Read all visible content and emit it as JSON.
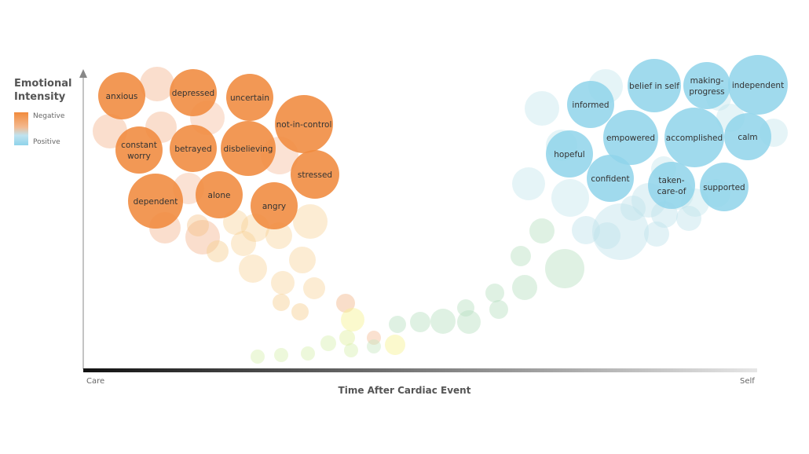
{
  "legend": {
    "title_line1": "Emotional",
    "title_line2": "Intensity",
    "negative_label": "Negative",
    "positive_label": "Positive",
    "gradient_colors": [
      "#f28b3c",
      "#8fd3ea"
    ]
  },
  "axes": {
    "y_title": "",
    "x_title": "Time After Cardiac Event",
    "x_start_label": "Care",
    "x_end_label": "Self"
  },
  "colors": {
    "negative": "#f08a3e",
    "positive": "#8fd3ea",
    "axis": "#888888"
  },
  "emotions": {
    "negative": [
      {
        "id": "anxious",
        "lines": [
          "anxious"
        ]
      },
      {
        "id": "depressed",
        "lines": [
          "depressed"
        ]
      },
      {
        "id": "uncertain",
        "lines": [
          "uncertain"
        ]
      },
      {
        "id": "not-in-control",
        "lines": [
          "not-in-control"
        ]
      },
      {
        "id": "constant-worry",
        "lines": [
          "constant",
          "worry"
        ]
      },
      {
        "id": "betrayed",
        "lines": [
          "betrayed"
        ]
      },
      {
        "id": "disbelieving",
        "lines": [
          "disbelieving"
        ]
      },
      {
        "id": "stressed",
        "lines": [
          "stressed"
        ]
      },
      {
        "id": "dependent",
        "lines": [
          "dependent"
        ]
      },
      {
        "id": "alone",
        "lines": [
          "alone"
        ]
      },
      {
        "id": "angry",
        "lines": [
          "angry"
        ]
      }
    ],
    "positive": [
      {
        "id": "informed",
        "lines": [
          "informed"
        ]
      },
      {
        "id": "belief-in-self",
        "lines": [
          "belief in self"
        ]
      },
      {
        "id": "making-progress",
        "lines": [
          "making-",
          "progress"
        ]
      },
      {
        "id": "independent",
        "lines": [
          "independent"
        ]
      },
      {
        "id": "empowered",
        "lines": [
          "empowered"
        ]
      },
      {
        "id": "accomplished",
        "lines": [
          "accomplished"
        ]
      },
      {
        "id": "calm",
        "lines": [
          "calm"
        ]
      },
      {
        "id": "hopeful",
        "lines": [
          "hopeful"
        ]
      },
      {
        "id": "confident",
        "lines": [
          "confident"
        ]
      },
      {
        "id": "taken-care-of",
        "lines": [
          "taken-",
          "care-of"
        ]
      },
      {
        "id": "supported",
        "lines": [
          "supported"
        ]
      }
    ]
  }
}
